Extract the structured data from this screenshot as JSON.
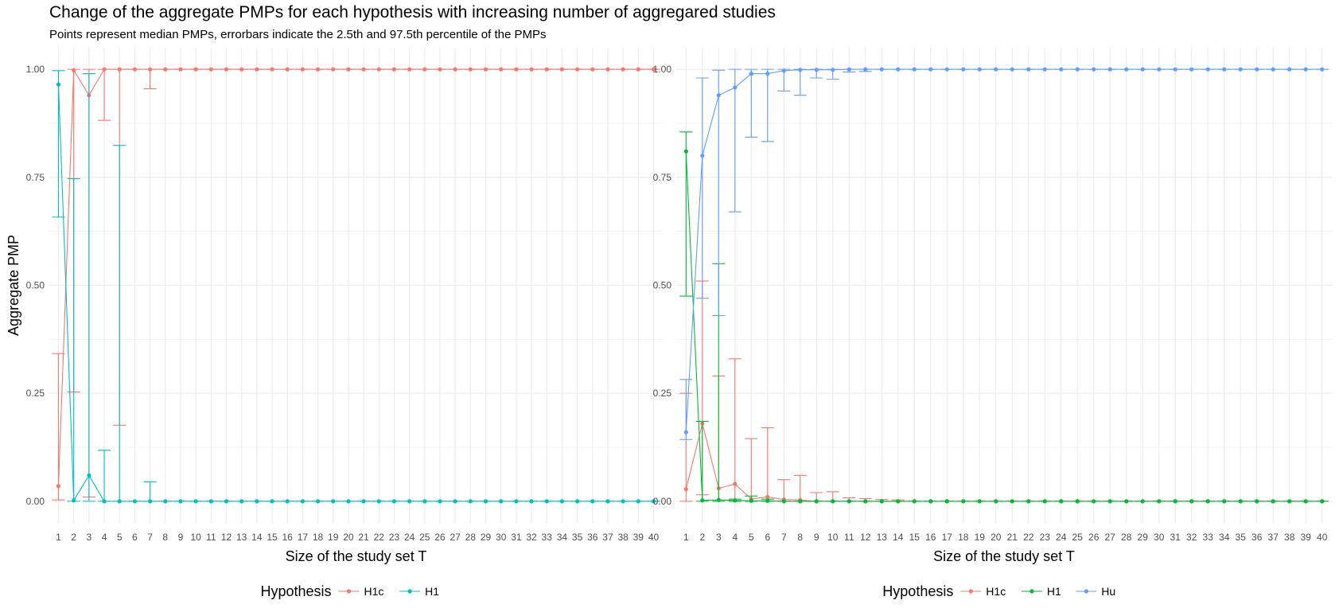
{
  "title": "Change of the aggregate PMPs for each hypothesis with increasing number of aggregared studies",
  "subtitle": "Points represent median PMPs, errorbars indicate the 2.5th and 97.5th percentile of the PMPs",
  "chart_data": [
    {
      "type": "line",
      "xlabel": "Size of the study set T",
      "ylabel": "Aggregate PMP",
      "ylim": [
        0,
        1
      ],
      "yticks": [
        0,
        0.25,
        0.5,
        0.75,
        1
      ],
      "ytick_labels": [
        "0.00",
        "0.25",
        "0.50",
        "0.75",
        "1.00"
      ],
      "x": [
        1,
        2,
        3,
        4,
        5,
        6,
        7,
        8,
        9,
        10,
        11,
        12,
        13,
        14,
        15,
        16,
        17,
        18,
        19,
        20,
        21,
        22,
        23,
        24,
        25,
        26,
        27,
        28,
        29,
        30,
        31,
        32,
        33,
        34,
        35,
        36,
        37,
        38,
        39,
        40
      ],
      "legend_title": "Hypothesis",
      "legend_position": "bottom",
      "grid": true,
      "series": [
        {
          "name": "H1c",
          "color": "#F8766D",
          "median": [
            0.035,
            0.998,
            0.94,
            1,
            1,
            1,
            1,
            1,
            1,
            1,
            1,
            1,
            1,
            1,
            1,
            1,
            1,
            1,
            1,
            1,
            1,
            1,
            1,
            1,
            1,
            1,
            1,
            1,
            1,
            1,
            1,
            1,
            1,
            1,
            1,
            1,
            1,
            1,
            1,
            1
          ],
          "lower": [
            0.003,
            0.253,
            0.01,
            0.882,
            0.176,
            1,
            0.955,
            1,
            1,
            1,
            1,
            1,
            1,
            1,
            1,
            1,
            1,
            1,
            1,
            1,
            1,
            1,
            1,
            1,
            1,
            1,
            1,
            1,
            1,
            1,
            1,
            1,
            1,
            1,
            1,
            1,
            1,
            1,
            1,
            1
          ],
          "upper": [
            0.342,
            1,
            1,
            1,
            1,
            1,
            1,
            1,
            1,
            1,
            1,
            1,
            1,
            1,
            1,
            1,
            1,
            1,
            1,
            1,
            1,
            1,
            1,
            1,
            1,
            1,
            1,
            1,
            1,
            1,
            1,
            1,
            1,
            1,
            1,
            1,
            1,
            1,
            1,
            1
          ]
        },
        {
          "name": "H1",
          "color": "#00BFC4",
          "median": [
            0.965,
            0.002,
            0.06,
            0,
            0,
            0,
            0,
            0,
            0,
            0,
            0,
            0,
            0,
            0,
            0,
            0,
            0,
            0,
            0,
            0,
            0,
            0,
            0,
            0,
            0,
            0,
            0,
            0,
            0,
            0,
            0,
            0,
            0,
            0,
            0,
            0,
            0,
            0,
            0,
            0
          ],
          "lower": [
            0.658,
            0,
            0,
            0,
            0,
            0,
            0,
            0,
            0,
            0,
            0,
            0,
            0,
            0,
            0,
            0,
            0,
            0,
            0,
            0,
            0,
            0,
            0,
            0,
            0,
            0,
            0,
            0,
            0,
            0,
            0,
            0,
            0,
            0,
            0,
            0,
            0,
            0,
            0,
            0
          ],
          "upper": [
            0.997,
            0.747,
            0.99,
            0.118,
            0.824,
            0,
            0.045,
            0,
            0,
            0,
            0,
            0,
            0,
            0,
            0,
            0,
            0,
            0,
            0,
            0,
            0,
            0,
            0,
            0,
            0,
            0,
            0,
            0,
            0,
            0,
            0,
            0,
            0,
            0,
            0,
            0,
            0,
            0,
            0,
            0
          ]
        }
      ]
    },
    {
      "type": "line",
      "xlabel": "Size of the study set T",
      "ylabel": "",
      "ylim": [
        0,
        1
      ],
      "yticks": [
        0,
        0.25,
        0.5,
        0.75,
        1
      ],
      "ytick_labels": [
        "0.00",
        "0.25",
        "0.50",
        "0.75",
        "1.00"
      ],
      "x": [
        1,
        2,
        3,
        4,
        5,
        6,
        7,
        8,
        9,
        10,
        11,
        12,
        13,
        14,
        15,
        16,
        17,
        18,
        19,
        20,
        21,
        22,
        23,
        24,
        25,
        26,
        27,
        28,
        29,
        30,
        31,
        32,
        33,
        34,
        35,
        36,
        37,
        38,
        39,
        40
      ],
      "legend_title": "Hypothesis",
      "legend_position": "bottom",
      "grid": true,
      "series": [
        {
          "name": "H1c",
          "color": "#F8766D",
          "median": [
            0.028,
            0.18,
            0.03,
            0.04,
            0.005,
            0.01,
            0.004,
            0.003,
            0,
            0,
            0,
            0,
            0,
            0,
            0,
            0,
            0,
            0,
            0,
            0,
            0,
            0,
            0,
            0,
            0,
            0,
            0,
            0,
            0,
            0,
            0,
            0,
            0,
            0,
            0,
            0,
            0,
            0,
            0,
            0
          ],
          "lower": [
            0,
            0.015,
            0,
            0,
            0,
            0,
            0,
            0,
            0,
            0,
            0,
            0,
            0,
            0,
            0,
            0,
            0,
            0,
            0,
            0,
            0,
            0,
            0,
            0,
            0,
            0,
            0,
            0,
            0,
            0,
            0,
            0,
            0,
            0,
            0,
            0,
            0,
            0,
            0,
            0
          ],
          "upper": [
            0.25,
            0.51,
            0.29,
            0.33,
            0.145,
            0.17,
            0.05,
            0.06,
            0.02,
            0.022,
            0.008,
            0.006,
            0.004,
            0.003,
            0,
            0,
            0,
            0,
            0,
            0,
            0,
            0,
            0,
            0,
            0,
            0,
            0,
            0,
            0,
            0,
            0,
            0,
            0,
            0,
            0,
            0,
            0,
            0,
            0,
            0
          ]
        },
        {
          "name": "H1",
          "color": "#00BA38",
          "median": [
            0.81,
            0.002,
            0.003,
            0.002,
            0.001,
            0.001,
            0,
            0,
            0,
            0,
            0,
            0,
            0,
            0,
            0,
            0,
            0,
            0,
            0,
            0,
            0,
            0,
            0,
            0,
            0,
            0,
            0,
            0,
            0,
            0,
            0,
            0,
            0,
            0,
            0,
            0,
            0,
            0,
            0,
            0
          ],
          "lower": [
            0.475,
            0,
            0,
            0,
            0,
            0,
            0,
            0,
            0,
            0,
            0,
            0,
            0,
            0,
            0,
            0,
            0,
            0,
            0,
            0,
            0,
            0,
            0,
            0,
            0,
            0,
            0,
            0,
            0,
            0,
            0,
            0,
            0,
            0,
            0,
            0,
            0,
            0,
            0,
            0
          ],
          "upper": [
            0.855,
            0.185,
            0.55,
            0.005,
            0.012,
            0.005,
            0,
            0,
            0,
            0,
            0,
            0,
            0,
            0,
            0,
            0,
            0,
            0,
            0,
            0,
            0,
            0,
            0,
            0,
            0,
            0,
            0,
            0,
            0,
            0,
            0,
            0,
            0,
            0,
            0,
            0,
            0,
            0,
            0,
            0
          ]
        },
        {
          "name": "Hu",
          "color": "#619CFF",
          "median": [
            0.16,
            0.8,
            0.94,
            0.958,
            0.99,
            0.99,
            0.997,
            0.999,
            0.999,
            0.999,
            1,
            1,
            1,
            1,
            1,
            1,
            1,
            1,
            1,
            1,
            1,
            1,
            1,
            1,
            1,
            1,
            1,
            1,
            1,
            1,
            1,
            1,
            1,
            1,
            1,
            1,
            1,
            1,
            1,
            1
          ],
          "lower": [
            0.143,
            0.47,
            0.43,
            0.67,
            0.843,
            0.833,
            0.95,
            0.94,
            0.98,
            0.977,
            0.994,
            0.995,
            1,
            1,
            1,
            1,
            1,
            1,
            1,
            1,
            1,
            1,
            1,
            1,
            1,
            1,
            1,
            1,
            1,
            1,
            1,
            1,
            1,
            1,
            1,
            1,
            1,
            1,
            1,
            1
          ],
          "upper": [
            0.282,
            0.98,
            0.998,
            1,
            1,
            1,
            1,
            1,
            1,
            1,
            1,
            1,
            1,
            1,
            1,
            1,
            1,
            1,
            1,
            1,
            1,
            1,
            1,
            1,
            1,
            1,
            1,
            1,
            1,
            1,
            1,
            1,
            1,
            1,
            1,
            1,
            1,
            1,
            1,
            1
          ]
        }
      ]
    }
  ]
}
